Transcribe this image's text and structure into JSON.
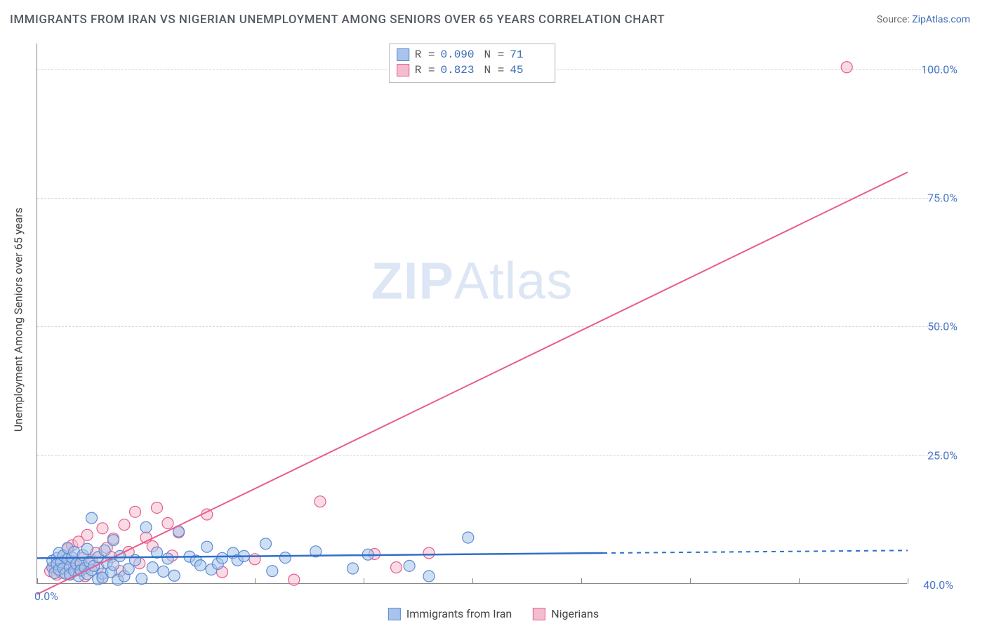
{
  "title": "IMMIGRANTS FROM IRAN VS NIGERIAN UNEMPLOYMENT AMONG SENIORS OVER 65 YEARS CORRELATION CHART",
  "source_prefix": "Source: ",
  "source_name": "ZipAtlas.com",
  "y_axis_label": "Unemployment Among Seniors over 65 years",
  "watermark_bold": "ZIP",
  "watermark_light": "Atlas",
  "chart": {
    "type": "scatter",
    "xlim": [
      0,
      40
    ],
    "ylim": [
      0,
      105
    ],
    "x_ticks": [
      0,
      5,
      10,
      15,
      20,
      25,
      30,
      35,
      40
    ],
    "y_gridlines": [
      25,
      50,
      75,
      100
    ],
    "y_tick_labels": [
      "25.0%",
      "50.0%",
      "75.0%",
      "100.0%"
    ],
    "x_min_label": "0.0%",
    "x_max_label": "40.0%",
    "background_color": "#ffffff",
    "grid_color": "#d3d3d3",
    "axis_color": "#888888",
    "tick_label_color": "#4a77c4",
    "marker_radius": 8,
    "marker_opacity": 0.55,
    "line_width": 2
  },
  "series": [
    {
      "name": "Immigrants from Iran",
      "color_fill": "#a8c4ea",
      "color_stroke": "#5b8bd4",
      "line_color": "#2f6fc9",
      "R": "0.090",
      "N": "71",
      "trend": {
        "x1": 0,
        "y1": 5.0,
        "x2": 26,
        "y2": 6.0,
        "dash_from_x": 26,
        "dash_to_x": 40,
        "dash_y2": 6.5
      },
      "points": [
        [
          0.7,
          3.2
        ],
        [
          0.7,
          4.5
        ],
        [
          0.8,
          2.1
        ],
        [
          0.9,
          5.0
        ],
        [
          0.9,
          3.8
        ],
        [
          1.0,
          2.8
        ],
        [
          1.0,
          6.0
        ],
        [
          1.1,
          4.2
        ],
        [
          1.2,
          3.0
        ],
        [
          1.2,
          5.5
        ],
        [
          1.3,
          2.0
        ],
        [
          1.4,
          4.8
        ],
        [
          1.4,
          7.0
        ],
        [
          1.5,
          3.3
        ],
        [
          1.5,
          1.8
        ],
        [
          1.6,
          5.1
        ],
        [
          1.7,
          2.5
        ],
        [
          1.7,
          6.2
        ],
        [
          1.8,
          3.9
        ],
        [
          1.9,
          1.5
        ],
        [
          2.0,
          4.0
        ],
        [
          2.0,
          2.6
        ],
        [
          2.1,
          5.6
        ],
        [
          2.2,
          3.1
        ],
        [
          2.3,
          1.9
        ],
        [
          2.3,
          6.8
        ],
        [
          2.4,
          4.3
        ],
        [
          2.5,
          2.7
        ],
        [
          2.5,
          12.8
        ],
        [
          2.6,
          3.5
        ],
        [
          2.8,
          0.9
        ],
        [
          2.8,
          5.2
        ],
        [
          3.0,
          2.0
        ],
        [
          3.0,
          1.2
        ],
        [
          3.1,
          6.5
        ],
        [
          3.2,
          4.1
        ],
        [
          3.4,
          2.3
        ],
        [
          3.5,
          3.7
        ],
        [
          3.5,
          8.5
        ],
        [
          3.7,
          0.8
        ],
        [
          3.8,
          5.4
        ],
        [
          4.0,
          1.5
        ],
        [
          4.2,
          2.9
        ],
        [
          4.5,
          4.6
        ],
        [
          4.8,
          1.0
        ],
        [
          5.0,
          11.0
        ],
        [
          5.3,
          3.2
        ],
        [
          5.5,
          6.1
        ],
        [
          5.8,
          2.4
        ],
        [
          6.0,
          4.9
        ],
        [
          6.3,
          1.6
        ],
        [
          6.5,
          10.2
        ],
        [
          7.0,
          5.3
        ],
        [
          7.3,
          4.5
        ],
        [
          7.5,
          3.6
        ],
        [
          7.8,
          7.2
        ],
        [
          8.0,
          2.8
        ],
        [
          8.3,
          3.9
        ],
        [
          8.5,
          5.0
        ],
        [
          9.0,
          6.0
        ],
        [
          9.2,
          4.6
        ],
        [
          9.5,
          5.4
        ],
        [
          10.5,
          7.8
        ],
        [
          10.8,
          2.5
        ],
        [
          11.4,
          5.1
        ],
        [
          12.8,
          6.3
        ],
        [
          14.5,
          3.0
        ],
        [
          15.2,
          5.7
        ],
        [
          17.1,
          3.5
        ],
        [
          18.0,
          1.5
        ],
        [
          19.8,
          9.0
        ]
      ]
    },
    {
      "name": "Nigerians",
      "color_fill": "#f4bdce",
      "color_stroke": "#e75d8d",
      "line_color": "#e75d8d",
      "R": "0.823",
      "N": "45",
      "trend": {
        "x1": 0,
        "y1": -2.0,
        "x2": 40,
        "y2": 80.0
      },
      "points": [
        [
          0.6,
          2.5
        ],
        [
          0.8,
          3.2
        ],
        [
          0.9,
          1.8
        ],
        [
          1.0,
          4.0
        ],
        [
          1.1,
          2.2
        ],
        [
          1.2,
          5.5
        ],
        [
          1.3,
          3.0
        ],
        [
          1.4,
          6.8
        ],
        [
          1.5,
          2.0
        ],
        [
          1.6,
          7.5
        ],
        [
          1.7,
          4.3
        ],
        [
          1.8,
          3.6
        ],
        [
          1.9,
          8.2
        ],
        [
          2.0,
          2.8
        ],
        [
          2.1,
          5.0
        ],
        [
          2.2,
          1.5
        ],
        [
          2.3,
          9.5
        ],
        [
          2.5,
          4.7
        ],
        [
          2.7,
          6.0
        ],
        [
          2.8,
          3.3
        ],
        [
          3.0,
          10.8
        ],
        [
          3.0,
          1.2
        ],
        [
          3.2,
          7.0
        ],
        [
          3.4,
          5.2
        ],
        [
          3.5,
          8.8
        ],
        [
          3.8,
          2.5
        ],
        [
          4.0,
          11.5
        ],
        [
          4.2,
          6.2
        ],
        [
          4.5,
          14.0
        ],
        [
          4.7,
          4.0
        ],
        [
          5.0,
          9.0
        ],
        [
          5.3,
          7.3
        ],
        [
          5.5,
          14.8
        ],
        [
          6.0,
          11.8
        ],
        [
          6.2,
          5.5
        ],
        [
          6.5,
          10.0
        ],
        [
          7.8,
          13.5
        ],
        [
          8.5,
          2.3
        ],
        [
          10.0,
          4.8
        ],
        [
          11.8,
          0.8
        ],
        [
          13.0,
          16.0
        ],
        [
          15.5,
          5.8
        ],
        [
          16.5,
          3.2
        ],
        [
          18.0,
          6.0
        ],
        [
          37.2,
          100.4
        ]
      ]
    }
  ],
  "top_legend": {
    "R_label": "R =",
    "N_label": "N ="
  },
  "bottom_legend_labels": [
    "Immigrants from Iran",
    "Nigerians"
  ]
}
